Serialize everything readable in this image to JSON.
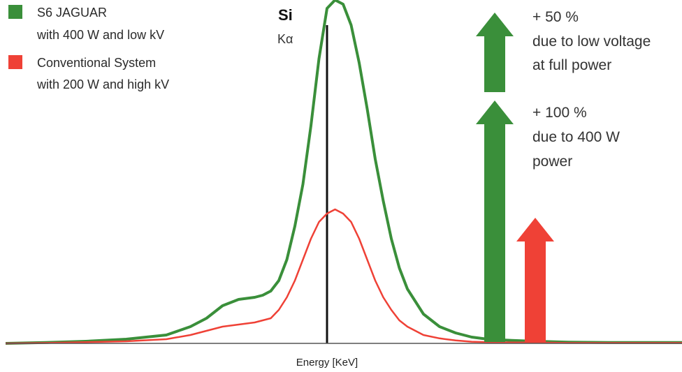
{
  "chart_data": {
    "type": "line",
    "xlabel": "Energy [KeV]",
    "ylabel": "",
    "x_ticks": [],
    "y_ticks": [],
    "grid": false,
    "legend_placement": "top-left",
    "peak_marker": {
      "element": "Si",
      "line": "Kα"
    },
    "x": [
      -40,
      -35,
      -30,
      -25,
      -20,
      -17,
      -15,
      -13,
      -11,
      -9,
      -8,
      -7,
      -6,
      -5,
      -4,
      -3,
      -2,
      -1,
      0,
      1,
      2,
      3,
      4,
      5,
      6,
      7,
      8,
      9,
      10,
      12,
      14,
      16,
      18,
      20,
      23,
      26,
      30,
      35,
      40,
      45,
      50
    ],
    "series": [
      {
        "name": "S6 JAGUAR with 400 W and low kV",
        "color": "#3a8f3a",
        "values": [
          0,
          0.2,
          0.5,
          1,
          2,
          4,
          6,
          9,
          10.5,
          11,
          11.5,
          12.5,
          15,
          20,
          28,
          38,
          52,
          68,
          80,
          82,
          81,
          76,
          67,
          56,
          44,
          34,
          25,
          18,
          13,
          7,
          4,
          2.5,
          1.5,
          1,
          0.7,
          0.5,
          0.3,
          0.2,
          0.2,
          0.2,
          0
        ]
      },
      {
        "name": "Conventional System with 200 W and high kV",
        "color": "#ef4136",
        "values": [
          0,
          0.1,
          0.3,
          0.5,
          1,
          2,
          3,
          4,
          4.5,
          5,
          5.5,
          6,
          8,
          11,
          15,
          20,
          25,
          29,
          31,
          32,
          31,
          29,
          25,
          20,
          15,
          11,
          8,
          5.5,
          4,
          2,
          1.2,
          0.7,
          0.4,
          0.3,
          0.2,
          0.2,
          0.1,
          0.1,
          0.1,
          0.1,
          0
        ]
      }
    ],
    "annotations": [
      {
        "label_lines": [
          "+ 50 %",
          "due to low voltage",
          "at full power"
        ],
        "color": "#3a8f3a",
        "from": 59,
        "to": 80
      },
      {
        "label_lines": [
          "+ 100 %",
          "due to 400 W",
          "power"
        ],
        "color": "#3a8f3a",
        "from": 0,
        "to": 59
      },
      {
        "label_lines": [],
        "color": "#ef4136",
        "from": 0,
        "to": 31
      }
    ]
  },
  "legend": [
    {
      "lines": [
        "S6 JAGUAR",
        "with 400 W and low kV"
      ],
      "color": "#3a8f3a"
    },
    {
      "lines": [
        "Conventional System",
        "with 200 W and high kV"
      ],
      "color": "#ef4136"
    }
  ]
}
